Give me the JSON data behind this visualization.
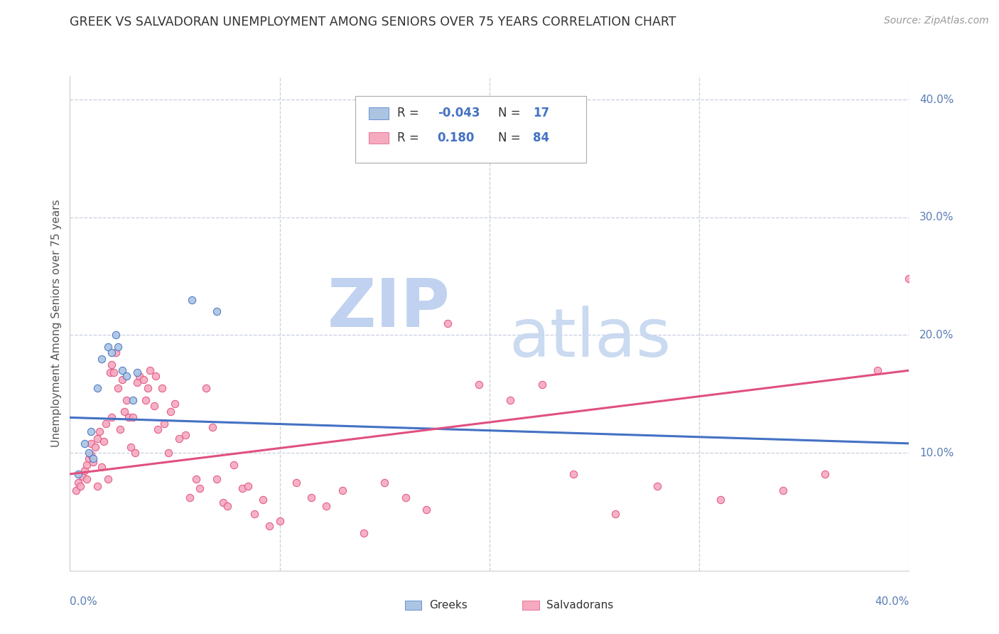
{
  "title": "GREEK VS SALVADORAN UNEMPLOYMENT AMONG SENIORS OVER 75 YEARS CORRELATION CHART",
  "source": "Source: ZipAtlas.com",
  "ylabel": "Unemployment Among Seniors over 75 years",
  "xlim": [
    0.0,
    0.4
  ],
  "ylim": [
    0.0,
    0.42
  ],
  "greek_R": -0.043,
  "greek_N": 17,
  "salvadoran_R": 0.18,
  "salvadoran_N": 84,
  "greek_color": "#aac4e2",
  "salvadoran_color": "#f5aabf",
  "greek_line_color": "#4472c4",
  "salvadoran_line_color": "#e05080",
  "greek_trend_start": 0.13,
  "greek_trend_end": 0.108,
  "salvadoran_trend_start": 0.082,
  "salvadoran_trend_end": 0.17,
  "watermark_zip_color": "#bdd0f0",
  "watermark_atlas_color": "#c8d8f0",
  "right_ytick_labels": [
    "10.0%",
    "20.0%",
    "30.0%",
    "40.0%"
  ],
  "right_ytick_vals": [
    0.1,
    0.2,
    0.3,
    0.4
  ],
  "greek_x": [
    0.004,
    0.007,
    0.009,
    0.01,
    0.011,
    0.013,
    0.015,
    0.018,
    0.02,
    0.022,
    0.023,
    0.025,
    0.027,
    0.03,
    0.032,
    0.058,
    0.07
  ],
  "greek_y": [
    0.082,
    0.108,
    0.1,
    0.118,
    0.095,
    0.155,
    0.18,
    0.19,
    0.185,
    0.2,
    0.19,
    0.17,
    0.165,
    0.145,
    0.168,
    0.23,
    0.22
  ],
  "salvadoran_x": [
    0.003,
    0.004,
    0.005,
    0.006,
    0.007,
    0.008,
    0.008,
    0.009,
    0.01,
    0.01,
    0.011,
    0.012,
    0.013,
    0.013,
    0.014,
    0.015,
    0.016,
    0.017,
    0.018,
    0.019,
    0.02,
    0.02,
    0.021,
    0.022,
    0.023,
    0.024,
    0.025,
    0.026,
    0.027,
    0.028,
    0.029,
    0.03,
    0.031,
    0.032,
    0.033,
    0.035,
    0.036,
    0.037,
    0.038,
    0.04,
    0.041,
    0.042,
    0.044,
    0.045,
    0.047,
    0.048,
    0.05,
    0.052,
    0.055,
    0.057,
    0.06,
    0.062,
    0.065,
    0.068,
    0.07,
    0.073,
    0.075,
    0.078,
    0.082,
    0.085,
    0.088,
    0.092,
    0.095,
    0.1,
    0.108,
    0.115,
    0.122,
    0.13,
    0.14,
    0.15,
    0.16,
    0.17,
    0.18,
    0.195,
    0.21,
    0.225,
    0.24,
    0.26,
    0.28,
    0.31,
    0.34,
    0.36,
    0.385,
    0.4
  ],
  "salvadoran_y": [
    0.068,
    0.075,
    0.072,
    0.08,
    0.085,
    0.09,
    0.078,
    0.095,
    0.098,
    0.108,
    0.092,
    0.105,
    0.112,
    0.072,
    0.118,
    0.088,
    0.11,
    0.125,
    0.078,
    0.168,
    0.13,
    0.175,
    0.168,
    0.185,
    0.155,
    0.12,
    0.162,
    0.135,
    0.145,
    0.13,
    0.105,
    0.13,
    0.1,
    0.16,
    0.165,
    0.162,
    0.145,
    0.155,
    0.17,
    0.14,
    0.165,
    0.12,
    0.155,
    0.125,
    0.1,
    0.135,
    0.142,
    0.112,
    0.115,
    0.062,
    0.078,
    0.07,
    0.155,
    0.122,
    0.078,
    0.058,
    0.055,
    0.09,
    0.07,
    0.072,
    0.048,
    0.06,
    0.038,
    0.042,
    0.075,
    0.062,
    0.055,
    0.068,
    0.032,
    0.075,
    0.062,
    0.052,
    0.21,
    0.158,
    0.145,
    0.158,
    0.082,
    0.048,
    0.072,
    0.06,
    0.068,
    0.082,
    0.17,
    0.248
  ]
}
